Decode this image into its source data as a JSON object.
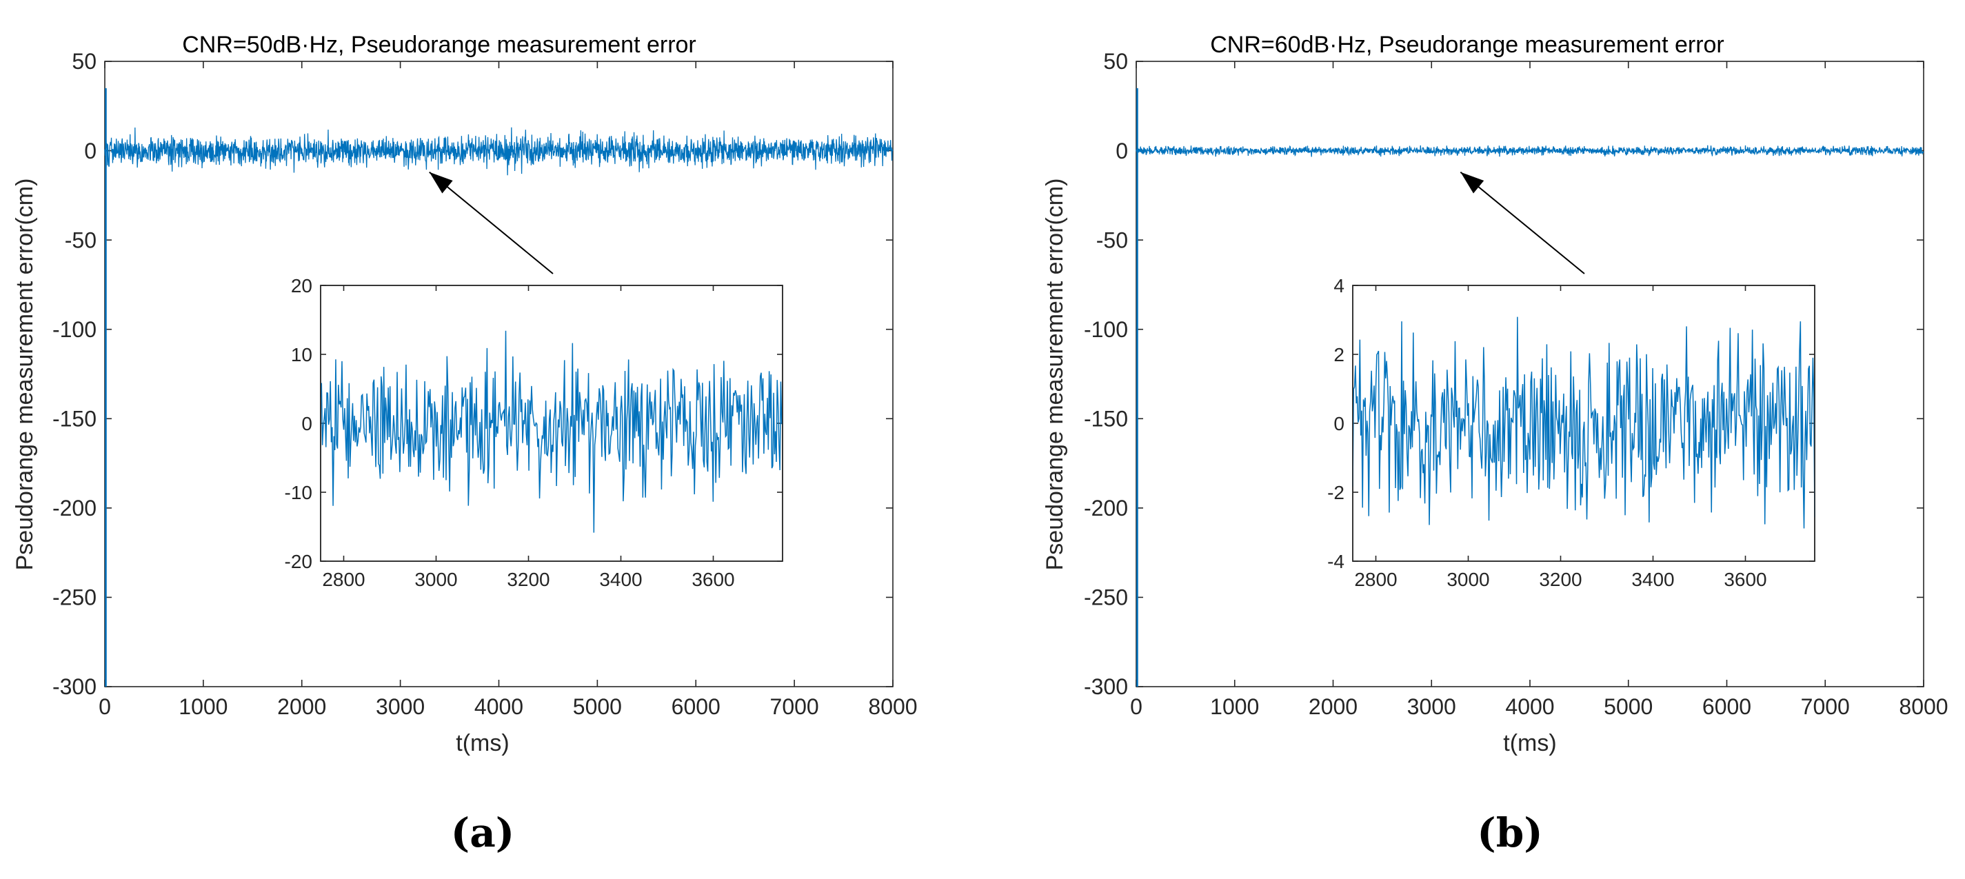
{
  "series_color": "#0072BD",
  "chart_data": [
    {
      "type": "line",
      "panel_label": "(a)",
      "title": "CNR=50dB·Hz, Pseudorange measurement error",
      "xlabel": "t(ms)",
      "ylabel": "Pseudorange measurement error(cm)",
      "xlim": [
        0,
        8000
      ],
      "ylim": [
        -300,
        50
      ],
      "xticks": [
        0,
        1000,
        2000,
        3000,
        4000,
        5000,
        6000,
        7000,
        8000
      ],
      "yticks": [
        50,
        0,
        -50,
        -100,
        -150,
        -200,
        -250,
        -300
      ],
      "series": [
        {
          "x_range": [
            0,
            8000
          ],
          "noise_std_cm": 4.0,
          "noise_range_cm": [
            -17,
            15
          ],
          "initial_transient_min_cm": -300
        }
      ],
      "annotation": {
        "type": "arrow",
        "points_to": [
          3750,
          -12
        ]
      },
      "inset": {
        "xlim": [
          2750,
          3750
        ],
        "ylim": [
          -20,
          20
        ],
        "xticks": [
          2800,
          3000,
          3200,
          3400,
          3600
        ],
        "yticks": [
          20,
          10,
          0,
          -10,
          -20
        ],
        "noise_std_cm": 4.5,
        "noise_range_cm": [
          -17.5,
          14
        ]
      }
    },
    {
      "type": "line",
      "panel_label": "(b)",
      "title": "CNR=60dB·Hz, Pseudorange measurement error",
      "xlabel": "t(ms)",
      "ylabel": "Pseudorange measurement error(cm)",
      "xlim": [
        0,
        8000
      ],
      "ylim": [
        -300,
        50
      ],
      "xticks": [
        0,
        1000,
        2000,
        3000,
        4000,
        5000,
        6000,
        7000,
        8000
      ],
      "yticks": [
        50,
        0,
        -50,
        -100,
        -150,
        -200,
        -250,
        -300
      ],
      "series": [
        {
          "x_range": [
            0,
            8000
          ],
          "noise_std_cm": 1.2,
          "noise_range_cm": [
            -3.6,
            3.2
          ],
          "initial_transient_min_cm": -300
        }
      ],
      "annotation": {
        "type": "arrow",
        "points_to": [
          3750,
          -12
        ]
      },
      "inset": {
        "xlim": [
          2750,
          3750
        ],
        "ylim": [
          -4,
          4
        ],
        "xticks": [
          2800,
          3000,
          3200,
          3400,
          3600
        ],
        "yticks": [
          4,
          2,
          0,
          -2,
          -4
        ],
        "noise_std_cm": 1.2,
        "noise_range_cm": [
          -3.6,
          3.2
        ]
      }
    }
  ]
}
